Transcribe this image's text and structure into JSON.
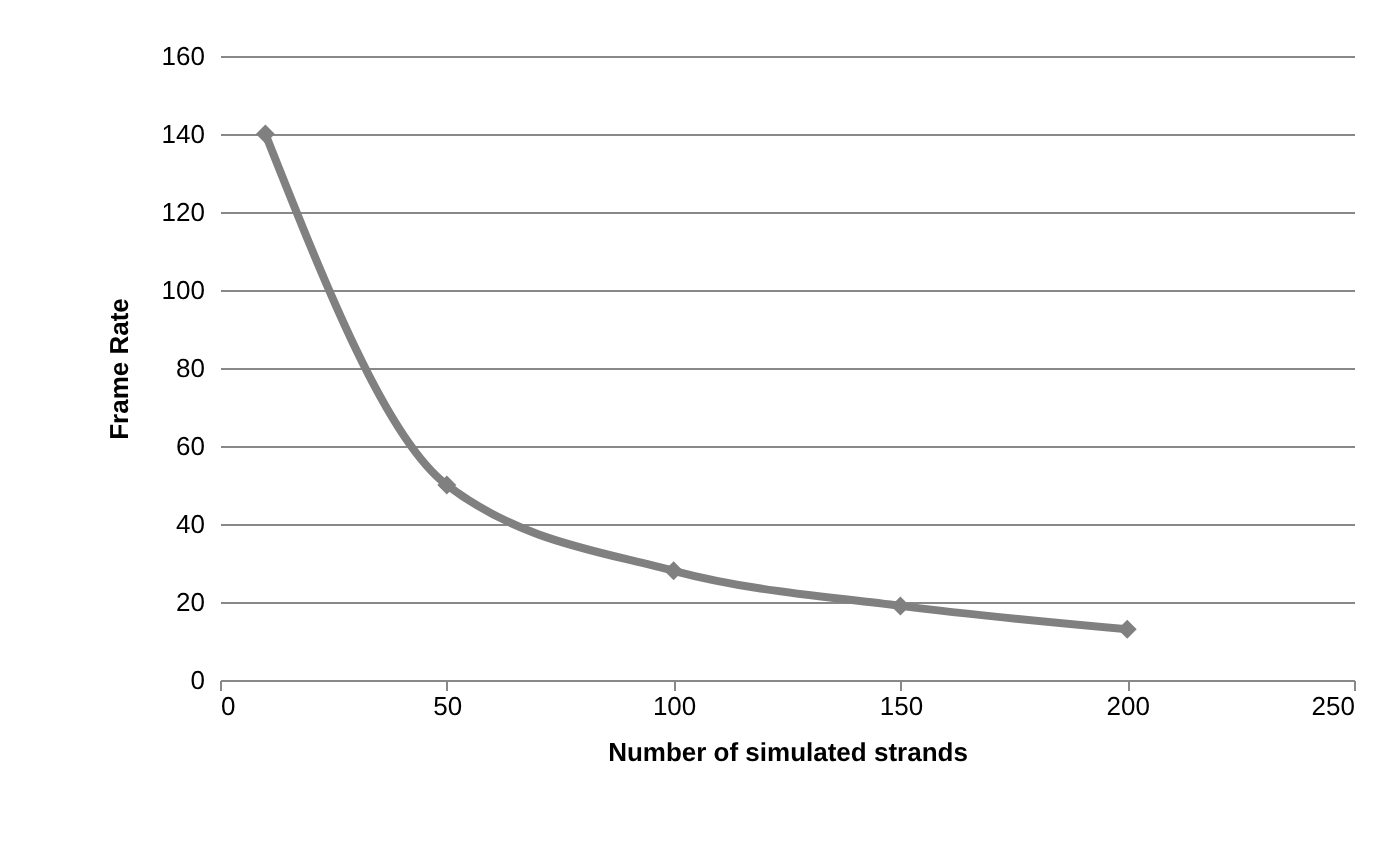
{
  "chart_data": {
    "type": "line",
    "xlabel": "Number of simulated strands",
    "ylabel": "Frame Rate",
    "x": [
      10,
      50,
      100,
      150,
      200
    ],
    "series": [
      {
        "color": "#808080",
        "values": [
          140,
          50,
          28,
          19,
          13
        ]
      }
    ],
    "xlim": [
      0,
      250
    ],
    "xticks": [
      0,
      50,
      100,
      150,
      200,
      250
    ],
    "ylim": [
      0,
      160
    ],
    "yticks": [
      0,
      20,
      40,
      60,
      80,
      100,
      120,
      140,
      160
    ],
    "grid": "y",
    "marker": "diamond",
    "line_style": "solid",
    "legend": false
  }
}
